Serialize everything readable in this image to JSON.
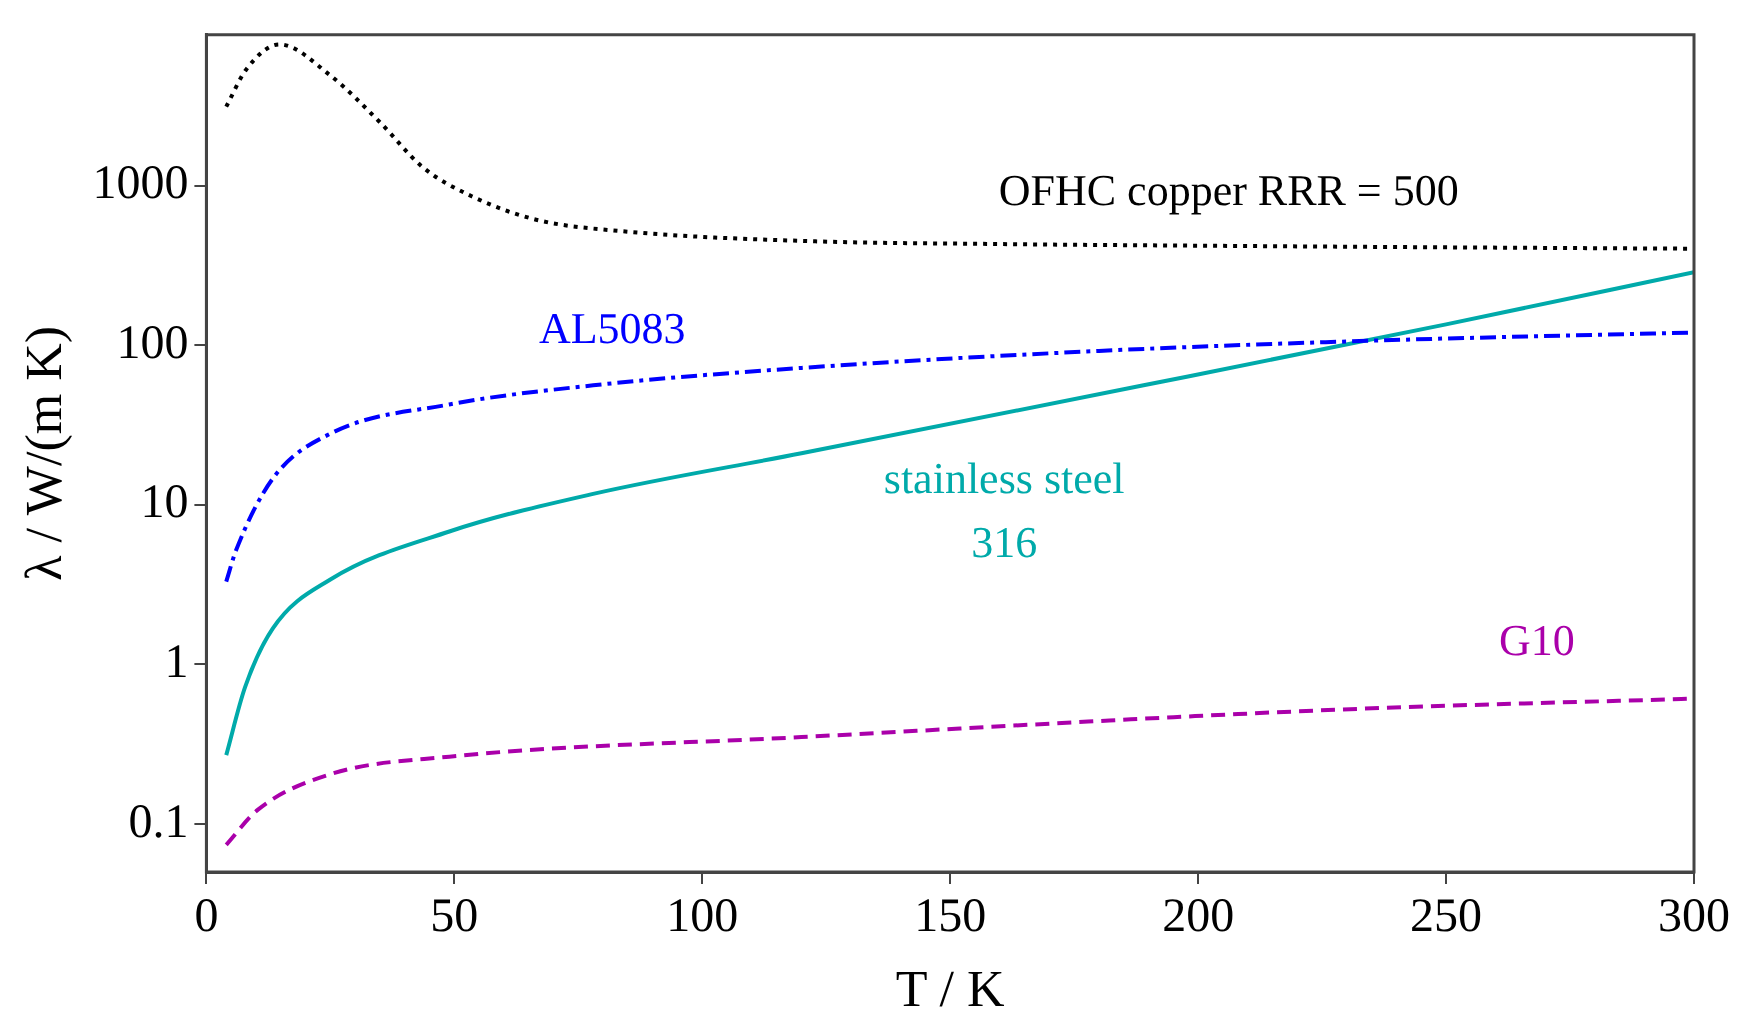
{
  "chart_data": {
    "type": "line",
    "xlabel": "T / K",
    "ylabel": "λ / W/(m K)",
    "log": "y",
    "grid": false,
    "legend": false,
    "marker": "none",
    "xlim": [
      0,
      300
    ],
    "xticks": [
      0,
      50,
      100,
      150,
      200,
      250,
      300
    ],
    "ylim": [
      0.05,
      8800
    ],
    "yticks": [
      0.1,
      1,
      10,
      100,
      1000
    ],
    "series": [
      {
        "name": "OFHC copper RRR = 500",
        "color": "#000000",
        "line_style": "dotted",
        "x": [
          4,
          8,
          14.7,
          25,
          35,
          43.6,
          53.5,
          66.5,
          84,
          121,
          160,
          200,
          250,
          300
        ],
        "values": [
          3120,
          5320,
          7660,
          4890,
          2490,
          1305,
          857,
          611,
          517,
          449,
          430,
          420,
          410,
          402
        ]
      },
      {
        "name": "AL5083",
        "color": "#0000ff",
        "line_style": "dashdot",
        "x": [
          4,
          6,
          13.4,
          25,
          49,
          78,
          120,
          180,
          236.5,
          300
        ],
        "values": [
          3.3,
          5.2,
          14.6,
          27.9,
          42.5,
          56,
          72,
          92,
          107,
          120
        ]
      },
      {
        "name": "stainless steel 316",
        "color": "#00aaaa",
        "line_style": "solid",
        "x": [
          4,
          7.8,
          13.4,
          25,
          49,
          78,
          120,
          189,
          250,
          300
        ],
        "values": [
          0.27,
          0.72,
          1.68,
          3.4,
          6.8,
          11.7,
          21,
          56,
          135,
          286
        ]
      },
      {
        "name": "G10",
        "color": "#aa00aa",
        "line_style": "dashed",
        "x": [
          4,
          10.4,
          25,
          49,
          120,
          228,
          300
        ],
        "values": [
          0.074,
          0.123,
          0.205,
          0.264,
          0.35,
          0.52,
          0.61
        ]
      }
    ]
  }
}
